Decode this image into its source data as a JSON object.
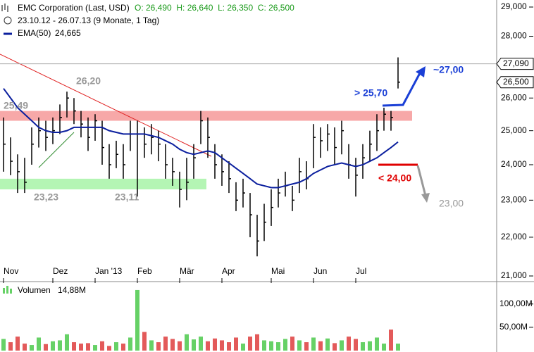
{
  "chart_data": {
    "type": "ohlc",
    "title": "EMC Corporation (Last, USD)",
    "quote": "O: 26,490  H: 26,640  L: 26,350  C: 26,500",
    "subtitle": "23.10.12 - 26.07.13 (9 Monate, 1 Tag)",
    "log_scale": true,
    "ylim": [
      21,
      29
    ],
    "yticks": [
      {
        "value": 21,
        "label": "21,000"
      },
      {
        "value": 22,
        "label": "22,000"
      },
      {
        "value": 23,
        "label": "23,000"
      },
      {
        "value": 24,
        "label": "24,000"
      },
      {
        "value": 25,
        "label": "25,000"
      },
      {
        "value": 26,
        "label": "26,000"
      },
      {
        "value": 27,
        "label": "27,000"
      },
      {
        "value": 28,
        "label": "28,000"
      },
      {
        "value": 29,
        "label": "29,000"
      }
    ],
    "categories": [
      "Nov",
      null,
      null,
      null,
      null,
      null,
      null,
      "Dez",
      null,
      null,
      null,
      null,
      null,
      "Jan '13",
      null,
      null,
      null,
      null,
      null,
      "Feb",
      null,
      null,
      null,
      null,
      null,
      "Mär",
      null,
      null,
      null,
      null,
      null,
      "Apr",
      null,
      null,
      null,
      null,
      null,
      null,
      "Mai",
      null,
      null,
      null,
      null,
      null,
      "Jun",
      null,
      null,
      null,
      null,
      null,
      "Jul",
      null,
      null,
      null,
      null,
      null,
      null
    ],
    "high": [
      25.4,
      24.8,
      24.3,
      24.2,
      25.1,
      25.4,
      25.3,
      25.4,
      25.8,
      26.2,
      26.0,
      25.6,
      25.4,
      25.5,
      25.3,
      24.6,
      24.7,
      24.6,
      25.3,
      25.3,
      25.1,
      25.2,
      25.0,
      24.6,
      24.2,
      23.8,
      24.2,
      24.6,
      25.6,
      25.4,
      24.6,
      24.3,
      24.1,
      23.5,
      23.6,
      23.2,
      22.6,
      22.9,
      23.3,
      23.6,
      23.8,
      23.4,
      24.2,
      24.1,
      25.2,
      25.1,
      25.2,
      25.1,
      25.3,
      24.6,
      24.2,
      24.6,
      25.0,
      25.5,
      25.7,
      25.6,
      27.3
    ],
    "low": [
      23.8,
      23.7,
      23.2,
      23.2,
      24.0,
      24.5,
      24.4,
      24.6,
      24.9,
      25.4,
      25.2,
      24.8,
      24.4,
      24.7,
      24.0,
      23.6,
      23.9,
      23.6,
      24.4,
      23.1,
      24.2,
      24.3,
      24.1,
      23.6,
      23.4,
      22.8,
      23.0,
      23.6,
      24.6,
      24.2,
      23.6,
      23.4,
      23.2,
      22.7,
      22.8,
      22.0,
      21.5,
      21.9,
      22.3,
      22.8,
      23.1,
      22.7,
      23.2,
      23.3,
      23.9,
      24.2,
      24.4,
      24.0,
      24.3,
      23.6,
      23.1,
      23.6,
      24.1,
      24.4,
      25.0,
      25.0,
      26.3
    ],
    "close": [
      24.6,
      24.1,
      23.8,
      23.5,
      24.6,
      25.0,
      24.8,
      25.0,
      25.4,
      26.0,
      25.6,
      25.2,
      24.8,
      25.3,
      24.5,
      24.0,
      24.3,
      24.0,
      24.9,
      24.9,
      24.6,
      24.8,
      24.6,
      24.0,
      23.8,
      23.3,
      23.5,
      24.2,
      25.3,
      24.8,
      24.0,
      23.8,
      23.6,
      23.0,
      23.2,
      22.6,
      21.9,
      22.4,
      22.8,
      23.2,
      23.4,
      23.0,
      23.8,
      23.6,
      24.8,
      24.7,
      24.9,
      24.5,
      25.0,
      24.0,
      23.7,
      24.2,
      24.6,
      25.0,
      25.5,
      25.4,
      26.5
    ],
    "bar_color": "#000000",
    "ema": {
      "name": "EMA(50)",
      "value_label": "24,665",
      "color": "#0b1f9e",
      "values": [
        26.3,
        26.0,
        25.7,
        25.5,
        25.3,
        25.1,
        25.0,
        24.95,
        24.95,
        25.0,
        25.1,
        25.1,
        25.1,
        25.1,
        25.1,
        25.0,
        24.95,
        24.9,
        24.9,
        24.9,
        24.9,
        24.85,
        24.8,
        24.7,
        24.6,
        24.45,
        24.35,
        24.3,
        24.35,
        24.4,
        24.35,
        24.2,
        24.05,
        23.9,
        23.75,
        23.6,
        23.45,
        23.4,
        23.35,
        23.35,
        23.4,
        23.45,
        23.5,
        23.6,
        23.75,
        23.85,
        23.95,
        24.0,
        24.05,
        24.0,
        23.95,
        24.0,
        24.1,
        24.2,
        24.35,
        24.5,
        24.665
      ]
    },
    "last_price": {
      "value": 27.09,
      "label": "27,090"
    },
    "close_price": {
      "value": 26.5,
      "label": "26,500"
    },
    "zones": [
      {
        "low": 25.3,
        "high": 25.6,
        "color": "#f7a8a8"
      },
      {
        "low": 23.3,
        "high": 23.6,
        "color": "#b4f5b4"
      }
    ],
    "annotations": [
      {
        "text": "26,20",
        "color": "#999999"
      },
      {
        "text": "25,49",
        "color": "#999999"
      },
      {
        "text": "23,23",
        "color": "#999999"
      },
      {
        "text": "23,11",
        "color": "#999999"
      },
      {
        "text": "> 25,70",
        "color": "#1a3fd6"
      },
      {
        "text": "~27,00",
        "color": "#1a3fd6"
      },
      {
        "text": "< 24,00",
        "color": "#e00000"
      },
      {
        "text": "23,00",
        "color": "#999999"
      }
    ],
    "volume": {
      "name": "Volumen",
      "value_label": "14,88M",
      "up_color": "#66d166",
      "down_color": "#e35a5a",
      "ylim": [
        0,
        142
      ],
      "yticks": [
        {
          "value": 50,
          "label": "50,00M"
        },
        {
          "value": 100,
          "label": "100,00M"
        }
      ],
      "values": [
        25,
        18,
        30,
        15,
        12,
        28,
        14,
        20,
        22,
        35,
        18,
        15,
        16,
        12,
        20,
        10,
        18,
        15,
        28,
        130,
        40,
        22,
        18,
        30,
        25,
        20,
        35,
        24,
        30,
        20,
        26,
        22,
        18,
        28,
        15,
        30,
        35,
        22,
        20,
        18,
        25,
        30,
        22,
        18,
        28,
        20,
        26,
        16,
        22,
        30,
        25,
        18,
        20,
        28,
        15,
        45,
        14.88
      ]
    }
  }
}
